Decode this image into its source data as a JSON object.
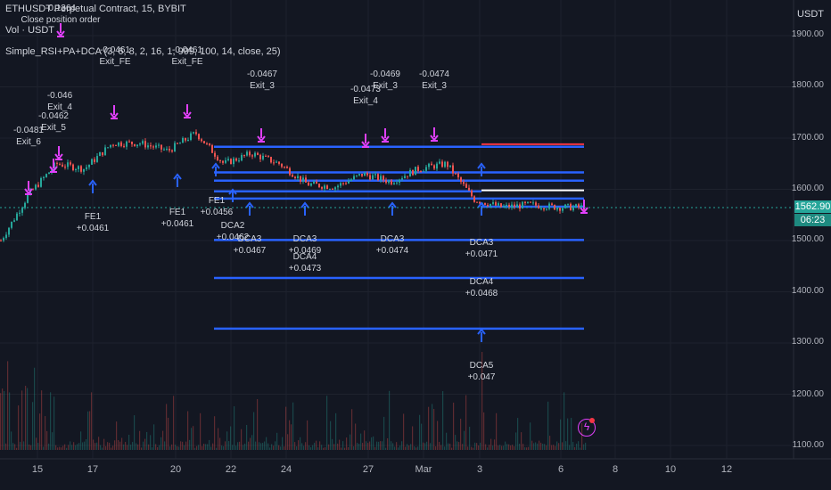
{
  "legend": {
    "symbol_line": "ETHUSDT Perpetual Contract, 15, BYBIT",
    "volume_line": "Vol · USDT",
    "indicator_line": "Simple_RSI+PA+DCA (3, 6, 8, 2, 16, 1, 999, 100, 14, close, 25)"
  },
  "price_axis": {
    "title": "USDT",
    "ticks": [
      "1700.00",
      "1600.00",
      "1500.00",
      "1400.00",
      "1300.00",
      "1200.00",
      "1100.00",
      "1900.00",
      "1800.00"
    ],
    "last_price": "1562.90",
    "countdown": "06:23"
  },
  "time_axis": {
    "ticks": [
      "15",
      "17",
      "20",
      "22",
      "24",
      "27",
      "Mar",
      "3",
      "6",
      "8",
      "10",
      "12"
    ]
  },
  "annotations": [
    {
      "text": "-0.1364"
    },
    {
      "text": "Close position order"
    },
    {
      "text": "-0.0461"
    },
    {
      "text": "Exit_FE"
    },
    {
      "text": "-0.0461"
    },
    {
      "text": "Exit_FE"
    },
    {
      "text": "-0.046"
    },
    {
      "text": "Exit_4"
    },
    {
      "text": "-0.0481"
    },
    {
      "text": "Exit_6"
    },
    {
      "text": "-0.0462"
    },
    {
      "text": "Exit_5"
    },
    {
      "text": "-0.0467"
    },
    {
      "text": "Exit_3"
    },
    {
      "text": "-0.0469"
    },
    {
      "text": "Exit_3"
    },
    {
      "text": "-0.0473"
    },
    {
      "text": "Exit_4"
    },
    {
      "text": "-0.0474"
    },
    {
      "text": "Exit_3"
    },
    {
      "text": "FE1"
    },
    {
      "text": "+0.0461"
    },
    {
      "text": "FE1"
    },
    {
      "text": "+0.0461"
    },
    {
      "text": "FE1"
    },
    {
      "text": "+0.0456"
    },
    {
      "text": "DCA2"
    },
    {
      "text": "+0.0462"
    },
    {
      "text": "DCA3"
    },
    {
      "text": "+0.0467"
    },
    {
      "text": "DCA3"
    },
    {
      "text": "+0.0469"
    },
    {
      "text": "DCA4"
    },
    {
      "text": "+0.0473"
    },
    {
      "text": "DCA3"
    },
    {
      "text": "+0.0474"
    },
    {
      "text": "DCA3"
    },
    {
      "text": "+0.0471"
    },
    {
      "text": "DCA4"
    },
    {
      "text": "+0.0468"
    },
    {
      "text": "DCA5"
    },
    {
      "text": "+0.047"
    }
  ],
  "colors": {
    "background": "#131722",
    "up": "#26a69a",
    "down": "#ef5350",
    "entry_arrow": "#2962ff",
    "exit_arrow": "#e040fb",
    "level_line": "#2962ff",
    "target_line": "#f23645"
  },
  "chart_data": {
    "type": "candlestick",
    "symbol": "ETHUSDT Perpetual Contract",
    "interval": "15",
    "exchange": "BYBIT",
    "y_unit": "USDT",
    "ylim": [
      1100,
      1900
    ],
    "last_price": 1562.9,
    "close_path": {
      "x_dates": [
        "Feb 14",
        "Feb 15",
        "Feb 16",
        "Feb 17",
        "Feb 18",
        "Feb 19",
        "Feb 20",
        "Feb 21",
        "Feb 22",
        "Feb 23",
        "Feb 24",
        "Feb 25",
        "Feb 26",
        "Feb 27",
        "Feb 28",
        "Mar 1",
        "Mar 2",
        "Mar 3",
        "Mar 4",
        "Mar 5",
        "Mar 6",
        "Mar 7"
      ],
      "values": [
        1500,
        1590,
        1650,
        1640,
        1690,
        1690,
        1675,
        1710,
        1650,
        1670,
        1650,
        1610,
        1605,
        1630,
        1615,
        1640,
        1650,
        1580,
        1565,
        1570,
        1565,
        1565
      ]
    },
    "horizontal_levels": [
      1683,
      1683,
      1633,
      1617,
      1596,
      1582,
      1501,
      1427,
      1328
    ],
    "target_level": 1688
  }
}
